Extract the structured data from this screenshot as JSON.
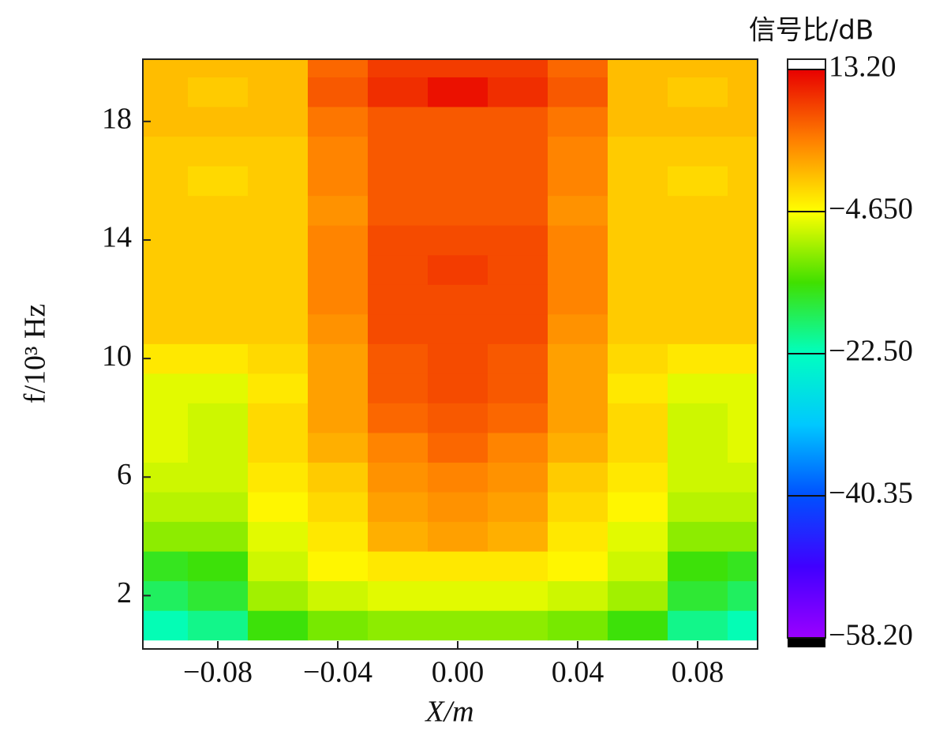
{
  "chart_data": {
    "type": "heatmap",
    "title": "信号比/dB",
    "xlabel": "X/m",
    "ylabel": "f/10³ Hz",
    "x": [
      -0.1,
      -0.08,
      -0.06,
      -0.04,
      -0.02,
      0,
      0.02,
      0.04,
      0.06,
      0.08,
      0.1
    ],
    "y": [
      1,
      2,
      3,
      4,
      5,
      6,
      7,
      8,
      9,
      10,
      11,
      12,
      13,
      14,
      15,
      16,
      17,
      18,
      19,
      20
    ],
    "z": [
      [
        -22,
        -20,
        -14,
        -11,
        -10,
        -10,
        -10,
        -11,
        -14,
        -20,
        -22
      ],
      [
        -18,
        -16,
        -9,
        -7,
        -6,
        -6,
        -6,
        -7,
        -9,
        -16,
        -18
      ],
      [
        -15,
        -14,
        -7,
        -4,
        -3,
        -3,
        -3,
        -4,
        -7,
        -14,
        -15
      ],
      [
        -10,
        -10,
        -6,
        -3,
        1,
        2,
        1,
        -3,
        -6,
        -10,
        -10
      ],
      [
        -8,
        -8,
        -4,
        -2,
        2,
        3,
        2,
        -2,
        -4,
        -8,
        -8
      ],
      [
        -7,
        -7,
        -3,
        -1,
        3,
        4,
        3,
        -1,
        -3,
        -7,
        -7
      ],
      [
        -6,
        -7,
        -2,
        1,
        4,
        6,
        4,
        1,
        -2,
        -7,
        -6
      ],
      [
        -6,
        -7,
        -2,
        2,
        6,
        7,
        6,
        2,
        -2,
        -7,
        -6
      ],
      [
        -6,
        -6,
        -3,
        2,
        7,
        8,
        7,
        2,
        -3,
        -6,
        -6
      ],
      [
        -3,
        -3,
        -2,
        2,
        7,
        8,
        7,
        2,
        -2,
        -3,
        -3
      ],
      [
        -1,
        -1,
        -1,
        3,
        8,
        8,
        8,
        3,
        -1,
        -1,
        -1
      ],
      [
        -1,
        -1,
        -1,
        4,
        8,
        8,
        8,
        4,
        -1,
        -1,
        -1
      ],
      [
        -1,
        -1,
        -1,
        4,
        8,
        9,
        8,
        4,
        -1,
        -1,
        -1
      ],
      [
        -1,
        -1,
        -1,
        4,
        8,
        8,
        8,
        4,
        -1,
        -1,
        -1
      ],
      [
        -1,
        -1,
        -1,
        3,
        7,
        7,
        7,
        3,
        -1,
        -1,
        -1
      ],
      [
        -1,
        -2,
        -1,
        4,
        7,
        7,
        7,
        4,
        -1,
        -2,
        -1
      ],
      [
        -1,
        -1,
        -1,
        4,
        7,
        7,
        7,
        4,
        -1,
        -1,
        -1
      ],
      [
        0,
        0,
        0,
        5,
        7,
        7,
        7,
        5,
        0,
        0,
        0
      ],
      [
        0,
        -1,
        0,
        7,
        10,
        12,
        10,
        7,
        0,
        -1,
        0
      ],
      [
        0,
        0,
        0,
        6,
        9,
        9,
        9,
        6,
        0,
        0,
        0
      ]
    ],
    "xlim": [
      -0.105,
      0.1
    ],
    "ylim": [
      0.2,
      20.1
    ],
    "xticks": [
      {
        "value": -0.08,
        "label": "−0.08"
      },
      {
        "value": -0.04,
        "label": "−0.04"
      },
      {
        "value": 0,
        "label": "0.00"
      },
      {
        "value": 0.04,
        "label": "0.04"
      },
      {
        "value": 0.08,
        "label": "0.08"
      }
    ],
    "yticks": [
      2,
      6,
      10,
      14,
      18
    ],
    "zlim": [
      -58.2,
      13.2
    ],
    "zticks": [
      {
        "value": 13.2,
        "label": "13.20"
      },
      {
        "value": -4.65,
        "label": "−4.650"
      },
      {
        "value": -22.5,
        "label": "−22.50"
      },
      {
        "value": -40.35,
        "label": "−40.35"
      },
      {
        "value": -58.2,
        "label": "−58.20"
      }
    ],
    "colorscale": [
      "#9b00ff",
      "#4000ff",
      "#0050ff",
      "#00c8ff",
      "#00ffc0",
      "#40e000",
      "#ffff00",
      "#ff8000",
      "#e80000"
    ]
  }
}
